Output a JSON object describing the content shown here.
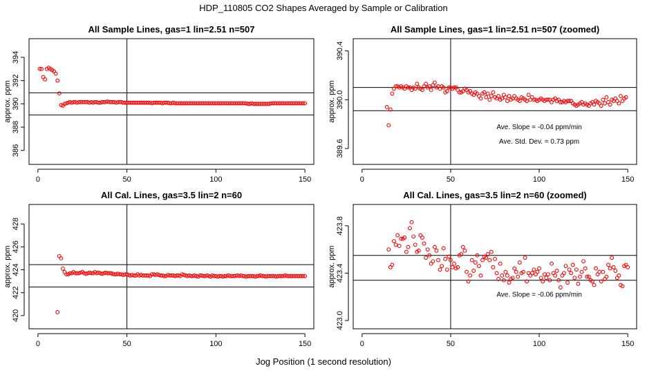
{
  "figure": {
    "title": "HDP_110805  CO2 Shapes Averaged by Sample or Calibration",
    "x_label": "Jog Position (1 second resolution)"
  },
  "colors": {
    "points": "#ff0000",
    "lines": "#000000"
  },
  "chart_data": [
    {
      "type": "scatter",
      "title": "All Sample Lines, gas=1 lin=2.51 n=507",
      "ylabel": "approx. ppm",
      "xlim": [
        -5,
        155
      ],
      "ylim": [
        384.8,
        395.6
      ],
      "xticks": [
        0,
        50,
        100,
        150
      ],
      "yticks": [
        386,
        388,
        390,
        392,
        394
      ],
      "ytick_labels": [
        "386",
        "388",
        "390",
        "392",
        "394"
      ],
      "hlines": [
        390.95,
        389.05
      ],
      "vline": 50,
      "annotations": [],
      "series": {
        "x_start": 1,
        "x_end": 150,
        "y": [
          393.0,
          393.0,
          392.3,
          392.1,
          393.0,
          393.1,
          393.0,
          392.9,
          392.8,
          392.6,
          392.0,
          390.9,
          389.9,
          389.85,
          390.0,
          390.05,
          390.1,
          390.15,
          390.1,
          390.15,
          390.15,
          390.1,
          390.15,
          390.15,
          390.15,
          390.15,
          390.15,
          390.15,
          390.1,
          390.15,
          390.1,
          390.15,
          390.15,
          390.1,
          390.1,
          390.15,
          390.15,
          390.15,
          390.2,
          390.15,
          390.15,
          390.15,
          390.15,
          390.1,
          390.15,
          390.15,
          390.15,
          390.1,
          390.1,
          390.1,
          390.1,
          390.1,
          390.1,
          390.1,
          390.1,
          390.1,
          390.1,
          390.1,
          390.1,
          390.1,
          390.1,
          390.1,
          390.1,
          390.05,
          390.1,
          390.1,
          390.1,
          390.1,
          390.1,
          390.05,
          390.1,
          390.1,
          390.1,
          390.05,
          390.05,
          390.1,
          390.05,
          390.05,
          390.05,
          390.05,
          390.05,
          390.05,
          390.05,
          390.05,
          390.05,
          390.05,
          390.05,
          390.05,
          390.05,
          390.05,
          390.05,
          390.05,
          390.05,
          390.05,
          390.05,
          390.05,
          390.05,
          390.05,
          390.05,
          390.05,
          390.05,
          390.05,
          390.05,
          390.05,
          390.05,
          390.05,
          390.05,
          390.05,
          390.05,
          390.05,
          390.05,
          390.05,
          390.05,
          390.05,
          390.05,
          390.05,
          390.05,
          390.0,
          390.0,
          390.05,
          390.0,
          390.0,
          390.0,
          390.0,
          390.0,
          390.0,
          390.0,
          390.0,
          390.0,
          390.0,
          390.05,
          390.05,
          390.05,
          390.05,
          390.05,
          390.05,
          390.05,
          390.05,
          390.05,
          390.05,
          390.05,
          390.05,
          390.05,
          390.05,
          390.05,
          390.05,
          390.05,
          390.05,
          390.05,
          390.05
        ]
      }
    },
    {
      "type": "scatter",
      "title": "All Sample Lines, gas=1 lin=2.51 n=507 (zoomed)",
      "ylabel": "approx. ppm",
      "xlim": [
        -5,
        155
      ],
      "ylim": [
        389.47,
        390.5
      ],
      "xticks": [
        0,
        50,
        100,
        150
      ],
      "yticks": [
        389.6,
        390.0,
        390.4
      ],
      "ytick_labels": [
        "389.6",
        "390.0",
        "390.4"
      ],
      "hlines": [
        390.1,
        389.91
      ],
      "vline": 50,
      "annotations": [
        {
          "text": "Ave. Slope =  -0.04  ppm/min",
          "x": 100,
          "y": 389.76
        },
        {
          "text": "Ave. Std. Dev. =  0.73  ppm",
          "x": 100,
          "y": 389.64
        }
      ],
      "series": {
        "x_start": 14,
        "x_end": 150,
        "y": [
          389.94,
          389.79,
          389.92,
          390.05,
          390.09,
          390.11,
          390.11,
          390.1,
          390.11,
          390.1,
          390.09,
          390.11,
          390.1,
          390.1,
          390.08,
          390.1,
          390.09,
          390.13,
          390.1,
          390.09,
          390.08,
          390.11,
          390.13,
          390.1,
          390.11,
          390.08,
          390.12,
          390.14,
          390.1,
          390.11,
          390.09,
          390.11,
          390.1,
          390.06,
          390.07,
          390.1,
          390.1,
          390.09,
          390.1,
          390.1,
          390.08,
          390.06,
          390.06,
          390.07,
          390.09,
          390.08,
          390.06,
          390.07,
          390.05,
          390.04,
          390.06,
          390.05,
          390.03,
          390.01,
          390.05,
          390.06,
          390.02,
          390.05,
          390.0,
          390.03,
          390.06,
          390.02,
          390.01,
          390.03,
          390.0,
          390.01,
          390.04,
          390.02,
          389.99,
          390.03,
          390.0,
          390.01,
          390.03,
          390.01,
          390.0,
          389.99,
          390.02,
          390.01,
          390.0,
          389.99,
          390.04,
          390.0,
          390.02,
          390.0,
          390.0,
          389.99,
          390.0,
          390.01,
          390.0,
          389.99,
          390.0,
          390.0,
          390.0,
          389.98,
          390.0,
          390.01,
          389.99,
          390.0,
          389.98,
          389.98,
          389.99,
          389.98,
          389.99,
          389.99,
          389.99,
          389.97,
          389.96,
          389.95,
          389.96,
          389.97,
          389.98,
          389.96,
          389.97,
          389.96,
          389.95,
          389.97,
          389.98,
          389.96,
          389.99,
          389.98,
          389.97,
          389.95,
          390.0,
          389.97,
          390.02,
          389.98,
          389.96,
          390.0,
          389.99,
          390.01,
          389.99,
          389.97,
          390.03,
          389.99,
          390.01,
          390.02
        ]
      }
    },
    {
      "type": "scatter",
      "title": "All Cal. Lines, gas=3.5 lin=2 n=60",
      "ylabel": "approx. ppm",
      "xlim": [
        -5,
        155
      ],
      "ylim": [
        418.85,
        429.7
      ],
      "xticks": [
        0,
        50,
        100,
        150
      ],
      "yticks": [
        420,
        422,
        424,
        426,
        428
      ],
      "ytick_labels": [
        "420",
        "422",
        "424",
        "426",
        "428"
      ],
      "hlines": [
        424.45,
        422.5
      ],
      "vline": 50,
      "annotations": [],
      "series": {
        "x_start": 11,
        "x_end": 150,
        "y": [
          420.3,
          425.2,
          425.0,
          424.1,
          423.8,
          423.6,
          423.6,
          423.7,
          423.7,
          423.8,
          423.7,
          423.7,
          423.7,
          423.75,
          423.8,
          423.7,
          423.65,
          423.7,
          423.75,
          423.7,
          423.7,
          423.8,
          423.7,
          423.75,
          423.7,
          423.65,
          423.7,
          423.75,
          423.7,
          423.7,
          423.7,
          423.65,
          423.6,
          423.6,
          423.65,
          423.6,
          423.6,
          423.55,
          423.6,
          423.6,
          423.55,
          423.5,
          423.55,
          423.5,
          423.5,
          423.6,
          423.5,
          423.55,
          423.5,
          423.5,
          423.5,
          423.5,
          423.45,
          423.6,
          423.6,
          423.55,
          423.6,
          423.55,
          423.5,
          423.5,
          423.45,
          423.45,
          423.55,
          423.5,
          423.5,
          423.5,
          423.45,
          423.5,
          423.5,
          423.45,
          423.6,
          423.55,
          423.5,
          423.45,
          423.5,
          423.45,
          423.45,
          423.5,
          423.45,
          423.4,
          423.5,
          423.5,
          423.45,
          423.45,
          423.5,
          423.45,
          423.4,
          423.5,
          423.45,
          423.45,
          423.4,
          423.45,
          423.45,
          423.4,
          423.45,
          423.45,
          423.5,
          423.45,
          423.45,
          423.45,
          423.45,
          423.5,
          423.45,
          423.5,
          423.45,
          423.45,
          423.4,
          423.45,
          423.45,
          423.45,
          423.45,
          423.4,
          423.45,
          423.45,
          423.5,
          423.45,
          423.45,
          423.4,
          423.45,
          423.45,
          423.45,
          423.45,
          423.45,
          423.4,
          423.45,
          423.45,
          423.45,
          423.45,
          423.5,
          423.45,
          423.45,
          423.45,
          423.45,
          423.45,
          423.45,
          423.45,
          423.45,
          423.45,
          423.45,
          423.45
        ]
      }
    },
    {
      "type": "scatter",
      "title": "All Cal. Lines, gas=3.5 lin=2 n=60 (zoomed)",
      "ylabel": "approx. ppm",
      "xlim": [
        -5,
        155
      ],
      "ylim": [
        422.93,
        423.98
      ],
      "xticks": [
        0,
        50,
        100,
        150
      ],
      "yticks": [
        423.0,
        423.4,
        423.8
      ],
      "ytick_labels": [
        "423.0",
        "423.4",
        "423.8"
      ],
      "hlines": [
        423.55,
        423.34
      ],
      "vline": 50,
      "annotations": [
        {
          "text": "Ave. Slope =  -0.06  ppm/min",
          "x": 100,
          "y": 423.2
        }
      ],
      "series": {
        "x_start": 15,
        "x_end": 150,
        "y": [
          423.6,
          423.45,
          423.47,
          423.67,
          423.64,
          423.72,
          423.63,
          423.69,
          423.69,
          423.7,
          423.58,
          423.62,
          423.78,
          423.83,
          423.71,
          423.64,
          423.58,
          423.59,
          423.72,
          423.7,
          423.65,
          423.53,
          423.6,
          423.55,
          423.48,
          423.5,
          423.62,
          423.59,
          423.51,
          423.43,
          423.46,
          423.61,
          423.52,
          423.43,
          423.54,
          423.51,
          423.45,
          423.48,
          423.44,
          423.45,
          423.55,
          423.56,
          423.62,
          423.59,
          423.41,
          423.33,
          423.38,
          423.51,
          423.42,
          423.49,
          423.55,
          423.46,
          423.38,
          423.51,
          423.54,
          423.53,
          423.56,
          423.51,
          423.58,
          423.45,
          423.52,
          423.4,
          423.35,
          423.48,
          423.38,
          423.34,
          423.41,
          423.38,
          423.32,
          423.35,
          423.36,
          423.44,
          423.41,
          423.37,
          423.49,
          423.4,
          423.41,
          423.53,
          423.33,
          423.4,
          423.38,
          423.4,
          423.43,
          423.39,
          423.41,
          423.44,
          423.36,
          423.33,
          423.39,
          423.36,
          423.39,
          423.34,
          423.48,
          423.4,
          423.38,
          423.42,
          423.34,
          423.28,
          423.38,
          423.4,
          423.46,
          423.32,
          423.43,
          423.4,
          423.47,
          423.36,
          423.43,
          423.31,
          423.37,
          423.41,
          423.5,
          423.44,
          423.37,
          423.37,
          423.34,
          423.33,
          423.3,
          423.44,
          423.39,
          423.41,
          423.33,
          423.41,
          423.35,
          423.37,
          423.47,
          423.44,
          423.53,
          423.45,
          423.42,
          423.36,
          423.38,
          423.3,
          423.29,
          423.46,
          423.47,
          423.45
        ]
      }
    }
  ]
}
